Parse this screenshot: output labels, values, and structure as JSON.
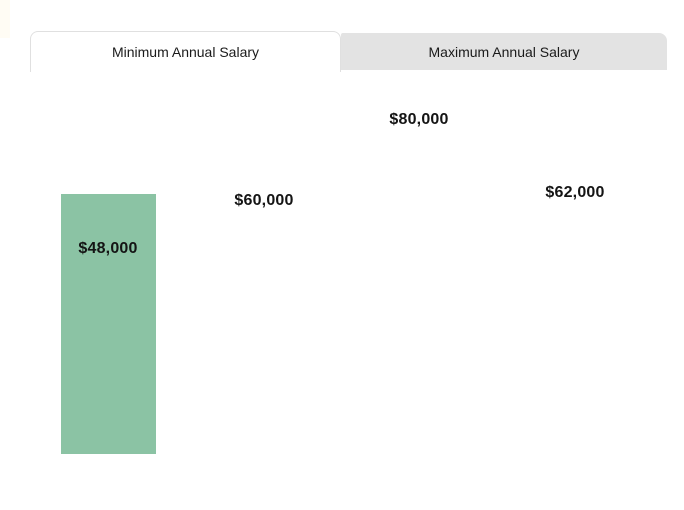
{
  "tabs": [
    {
      "label": "Minimum Annual Salary",
      "active": true
    },
    {
      "label": "Maximum Annual Salary",
      "active": false
    }
  ],
  "chart_data": {
    "type": "bar",
    "title": "",
    "active_tab_series": "Minimum Annual Salary",
    "values": [
      48000,
      60000,
      80000,
      62000
    ],
    "value_labels": [
      "$48,000",
      "$60,000",
      "$80,000",
      "$62,000"
    ],
    "bars_rendered": [
      true,
      false,
      false,
      false
    ],
    "bar_color": "#8bc3a4",
    "label_color": "#141414",
    "axes_visible": false,
    "gridlines_visible": false,
    "legend_position": "none"
  },
  "colors": {
    "background": "#ffffff",
    "active_tab_bg": "#ffffff",
    "inactive_tab_bg": "#e3e3e3",
    "tab_border": "#e0e0e0",
    "bar_green": "#8bc3a4"
  }
}
